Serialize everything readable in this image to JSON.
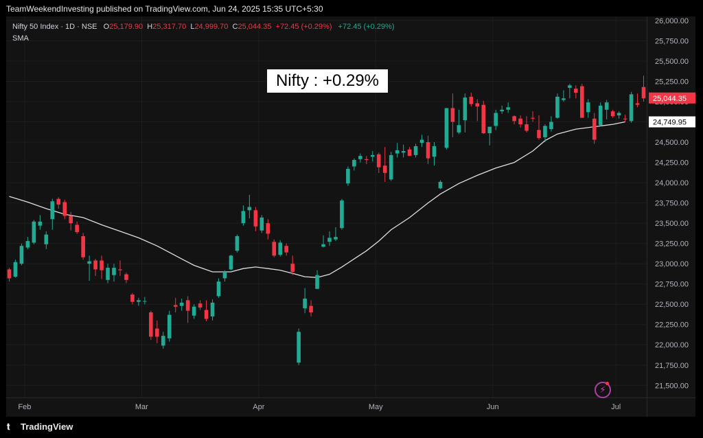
{
  "header": {
    "published": "TeamWeekendInvesting published on TradingView.com, Jun 24, 2025 15:35 UTC+5:30"
  },
  "legend": {
    "symbol": "Nifty 50 Index · 1D · NSE",
    "open_key": "O",
    "open": "25,179.90",
    "high_key": "H",
    "high": "25,317.70",
    "low_key": "L",
    "low": "24,999.70",
    "close_key": "C",
    "close": "25,044.35",
    "change": "+72.45 (+0.29%)",
    "change2": "+72.45 (+0.29%)",
    "indicator": "SMA"
  },
  "annotation": "Nifty : +0.29%",
  "footer": {
    "brand": "TradingView"
  },
  "icons": {
    "replay": "lightning-bolt-icon",
    "logo": "tradingview-logo-icon"
  },
  "colors": {
    "up": "#22ab94",
    "down": "#f23645",
    "sma": "#e0e0e0",
    "background": "#131313"
  },
  "chart_data": {
    "type": "candlestick",
    "symbol": "Nifty 50 Index",
    "interval": "1D",
    "exchange": "NSE",
    "ylim": [
      21350,
      26050
    ],
    "y_ticks": [
      "26,000.00",
      "25,750.00",
      "25,500.00",
      "25,250.00",
      "25,000.00",
      "24,750.00",
      "24,500.00",
      "24,250.00",
      "24,000.00",
      "23,750.00",
      "23,500.00",
      "23,250.00",
      "23,000.00",
      "22,750.00",
      "22,500.00",
      "22,250.00",
      "22,000.00",
      "21,750.00",
      "21,500.00"
    ],
    "y_tick_values": [
      26000,
      25750,
      25500,
      25250,
      25000,
      24750,
      24500,
      24250,
      24000,
      23750,
      23500,
      23250,
      23000,
      22750,
      22500,
      22250,
      22000,
      21750,
      21500
    ],
    "x_labels": [
      {
        "label": "Feb",
        "bar": 2.5
      },
      {
        "label": "Mar",
        "bar": 21.5
      },
      {
        "label": "Apr",
        "bar": 40.5
      },
      {
        "label": "May",
        "bar": 59.5
      },
      {
        "label": "Jun",
        "bar": 78.5
      },
      {
        "label": "Jul",
        "bar": 98.5
      }
    ],
    "x_range": [
      -0.5,
      103.5
    ],
    "last_price": {
      "label": "25,044.35",
      "value": 25044.35,
      "color": "#f23645"
    },
    "sma_last": {
      "label": "24,749.95",
      "value": 24749.95
    },
    "ohlc": [
      [
        22930,
        22950,
        22780,
        22820
      ],
      [
        22840,
        23050,
        22830,
        23020
      ],
      [
        23000,
        23250,
        22980,
        23220
      ],
      [
        23200,
        23330,
        23180,
        23280
      ],
      [
        23260,
        23540,
        23240,
        23520
      ],
      [
        23470,
        23600,
        23420,
        23520
      ],
      [
        23240,
        23400,
        23180,
        23360
      ],
      [
        23550,
        23800,
        23420,
        23770
      ],
      [
        23800,
        23820,
        23680,
        23730
      ],
      [
        23760,
        23790,
        23550,
        23590
      ],
      [
        23590,
        23640,
        23410,
        23500
      ],
      [
        23480,
        23520,
        23370,
        23390
      ],
      [
        23340,
        23380,
        23050,
        23080
      ],
      [
        23000,
        23100,
        22790,
        23030
      ],
      [
        23040,
        23060,
        22850,
        22930
      ],
      [
        23040,
        23100,
        22810,
        22920
      ],
      [
        22800,
        23000,
        22760,
        22950
      ],
      [
        22860,
        23000,
        22780,
        22950
      ],
      [
        22930,
        23040,
        22850,
        22920
      ],
      [
        22870,
        22890,
        22760,
        22800
      ],
      [
        22620,
        22640,
        22500,
        22530
      ],
      [
        22530,
        22580,
        22480,
        22550
      ],
      [
        22540,
        22590,
        22500,
        22540
      ],
      [
        22400,
        22420,
        22060,
        22100
      ],
      [
        22200,
        22300,
        22020,
        22100
      ],
      [
        21990,
        22160,
        21950,
        22110
      ],
      [
        22080,
        22420,
        22040,
        22370
      ],
      [
        22490,
        22580,
        22400,
        22470
      ],
      [
        22480,
        22570,
        22420,
        22520
      ],
      [
        22550,
        22600,
        22270,
        22420
      ],
      [
        22360,
        22500,
        22320,
        22470
      ],
      [
        22510,
        22550,
        22430,
        22460
      ],
      [
        22430,
        22550,
        22290,
        22320
      ],
      [
        22350,
        22560,
        22300,
        22520
      ],
      [
        22600,
        22820,
        22580,
        22780
      ],
      [
        22820,
        22920,
        22780,
        22900
      ],
      [
        22930,
        23110,
        22920,
        23100
      ],
      [
        23160,
        23360,
        23140,
        23340
      ],
      [
        23500,
        23720,
        23470,
        23650
      ],
      [
        23660,
        23850,
        23560,
        23700
      ],
      [
        23660,
        23700,
        23400,
        23460
      ],
      [
        23410,
        23600,
        23380,
        23570
      ],
      [
        23500,
        23550,
        23300,
        23370
      ],
      [
        23270,
        23300,
        23080,
        23100
      ],
      [
        23110,
        23290,
        23090,
        23260
      ],
      [
        23220,
        23250,
        23100,
        23140
      ],
      [
        23000,
        23100,
        22860,
        22900
      ],
      [
        21780,
        22200,
        21750,
        22160
      ],
      [
        22450,
        22700,
        22390,
        22570
      ],
      [
        22480,
        22550,
        22350,
        22400
      ],
      [
        22690,
        22920,
        22690,
        22860
      ],
      [
        23210,
        23350,
        23200,
        23240
      ],
      [
        23270,
        23400,
        23220,
        23320
      ],
      [
        23300,
        23450,
        23280,
        23330
      ],
      [
        23440,
        23800,
        23420,
        23780
      ],
      [
        23990,
        24200,
        23960,
        24170
      ],
      [
        24200,
        24300,
        24150,
        24280
      ],
      [
        24290,
        24360,
        24250,
        24330
      ],
      [
        24290,
        24330,
        24230,
        24280
      ],
      [
        24320,
        24390,
        24260,
        24340
      ],
      [
        24350,
        24370,
        24120,
        24190
      ],
      [
        24210,
        24440,
        24010,
        24120
      ],
      [
        24040,
        24380,
        24020,
        24340
      ],
      [
        24360,
        24490,
        24310,
        24400
      ],
      [
        24370,
        24470,
        24310,
        24390
      ],
      [
        24410,
        24440,
        24330,
        24330
      ],
      [
        24340,
        24480,
        24310,
        24450
      ],
      [
        24490,
        24590,
        24440,
        24530
      ],
      [
        24500,
        24580,
        24230,
        24300
      ],
      [
        24320,
        24500,
        24210,
        24450
      ],
      [
        23930,
        24030,
        23920,
        24010
      ],
      [
        24430,
        24910,
        24410,
        24920
      ],
      [
        24920,
        25100,
        24560,
        24750
      ],
      [
        24620,
        24900,
        24600,
        24710
      ],
      [
        24770,
        25100,
        24620,
        25050
      ],
      [
        25060,
        25110,
        24940,
        24970
      ],
      [
        24980,
        25030,
        24760,
        24940
      ],
      [
        24960,
        25010,
        24600,
        24610
      ],
      [
        24610,
        24660,
        24460,
        24690
      ],
      [
        24700,
        24900,
        24650,
        24860
      ],
      [
        24880,
        24950,
        24850,
        24900
      ],
      [
        24900,
        24990,
        24860,
        24930
      ],
      [
        24820,
        24830,
        24720,
        24760
      ],
      [
        24790,
        24830,
        24680,
        24720
      ],
      [
        24720,
        24820,
        24620,
        24640
      ],
      [
        24800,
        24880,
        24750,
        24790
      ],
      [
        24650,
        24830,
        24530,
        24550
      ],
      [
        24560,
        24720,
        24500,
        24700
      ],
      [
        24660,
        24820,
        24630,
        24750
      ],
      [
        24800,
        25100,
        24790,
        25060
      ],
      [
        25020,
        25140,
        25000,
        25040
      ],
      [
        25170,
        25220,
        25040,
        25200
      ],
      [
        25160,
        25200,
        25040,
        25110
      ],
      [
        25190,
        25220,
        24800,
        24800
      ],
      [
        24870,
        25030,
        24800,
        24990
      ],
      [
        24790,
        24860,
        24480,
        24530
      ],
      [
        24710,
        24990,
        24700,
        24950
      ],
      [
        24900,
        25020,
        24780,
        24990
      ],
      [
        24880,
        24900,
        24800,
        24820
      ],
      [
        24830,
        24880,
        24790,
        24860
      ],
      [
        24790,
        24840,
        24750,
        24780
      ],
      [
        24760,
        25120,
        24740,
        25090
      ],
      [
        24980,
        25100,
        24930,
        24960
      ],
      [
        25180,
        25320,
        25000,
        25040
      ]
    ],
    "sma": [
      [
        0,
        23830
      ],
      [
        3,
        23760
      ],
      [
        6,
        23680
      ],
      [
        9,
        23610
      ],
      [
        12,
        23570
      ],
      [
        15,
        23480
      ],
      [
        18,
        23400
      ],
      [
        21,
        23320
      ],
      [
        24,
        23220
      ],
      [
        27,
        23100
      ],
      [
        30,
        22980
      ],
      [
        33,
        22900
      ],
      [
        36,
        22900
      ],
      [
        38,
        22940
      ],
      [
        40,
        22960
      ],
      [
        42,
        22940
      ],
      [
        44,
        22920
      ],
      [
        46,
        22880
      ],
      [
        48,
        22840
      ],
      [
        50,
        22830
      ],
      [
        52,
        22870
      ],
      [
        54,
        22960
      ],
      [
        56,
        23060
      ],
      [
        58,
        23160
      ],
      [
        60,
        23280
      ],
      [
        62,
        23420
      ],
      [
        65,
        23570
      ],
      [
        68,
        23750
      ],
      [
        70,
        23860
      ],
      [
        73,
        23990
      ],
      [
        76,
        24090
      ],
      [
        79,
        24180
      ],
      [
        82,
        24250
      ],
      [
        85,
        24390
      ],
      [
        87,
        24520
      ],
      [
        89,
        24600
      ],
      [
        92,
        24660
      ],
      [
        95,
        24690
      ],
      [
        98,
        24720
      ],
      [
        100,
        24750
      ]
    ]
  }
}
